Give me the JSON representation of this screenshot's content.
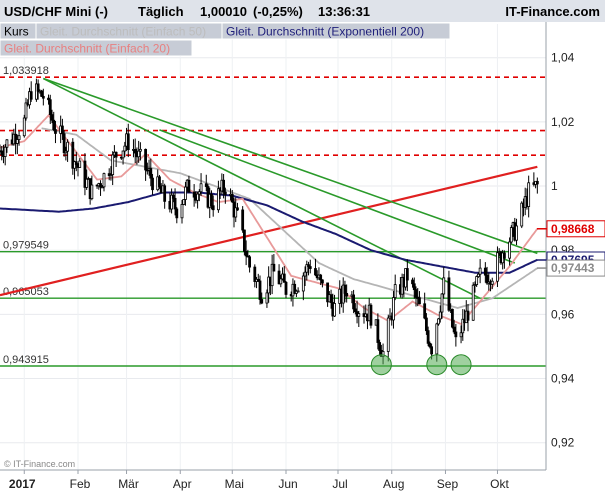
{
  "header": {
    "symbol": "USD/CHF Mini (-)",
    "interval": "Täglich",
    "last": "1,00010",
    "change": "(-0,25%)",
    "time": "13:36:31",
    "brand": "IT-Finance.com"
  },
  "legend": [
    {
      "label": "Kurs",
      "color": "#000000",
      "bg": "#c7ccd6"
    },
    {
      "label": "Gleit. Durchschnitt (Einfach 50)",
      "color": "#bdbdbd",
      "bg": "#c7ccd6"
    },
    {
      "label": "Gleit. Durchschnitt (Exponentiell 200)",
      "color": "#1f1f7a",
      "bg": "#c7ccd6"
    },
    {
      "label": "Gleit. Durchschnitt (Einfach 20)",
      "color": "#e88080",
      "bg": "#c7ccd6"
    }
  ],
  "watermark": "© IT-Finance.com",
  "colors": {
    "candle": "#000000",
    "ma20": "#e89a9a",
    "ma50": "#b5b5b5",
    "ema200": "#1a1a70",
    "support": "#2a9a2a",
    "resistance": "#e00000",
    "trend": "#e02020",
    "down_trend": "#2a9a2a"
  },
  "chart_data": {
    "type": "line",
    "title": "USD/CHF Mini (-)",
    "x_tick_labels": [
      "2017",
      "Feb",
      "Mär",
      "Apr",
      "Mai",
      "Jun",
      "Jul",
      "Aug",
      "Sep",
      "Okt"
    ],
    "x_tick_days": [
      0,
      31,
      59,
      90,
      120,
      151,
      181,
      212,
      243,
      273
    ],
    "x_range_days": [
      -14,
      301
    ],
    "y_ticks": [
      0.92,
      0.94,
      0.96,
      0.98,
      1.0,
      1.02,
      1.04
    ],
    "y_tick_labels": [
      "0,92",
      "0,94",
      "0,96",
      "0,98",
      "1",
      "1,02",
      "1,04"
    ],
    "ylim": [
      0.9115,
      1.0505
    ],
    "horizontal_levels": [
      {
        "value": 1.033918,
        "label": "1,033918",
        "style": "resistance"
      },
      {
        "value": 1.0173,
        "label": "",
        "style": "resistance"
      },
      {
        "value": 1.0096,
        "label": "",
        "style": "resistance"
      },
      {
        "value": 0.979549,
        "label": "0,979549",
        "style": "support"
      },
      {
        "value": 0.965053,
        "label": "0,965053",
        "style": "support"
      },
      {
        "value": 0.943915,
        "label": "0,943915",
        "style": "support"
      }
    ],
    "trend_lines": [
      {
        "name": "rising",
        "points": [
          [
            -14,
            0.966
          ],
          [
            296,
            1.006
          ]
        ],
        "style": "trend"
      },
      {
        "name": "down1",
        "points": [
          [
            11,
            1.0335
          ],
          [
            296,
            0.979
          ]
        ],
        "style": "down_trend"
      },
      {
        "name": "down2",
        "points": [
          [
            11,
            1.0335
          ],
          [
            263,
            0.965
          ]
        ],
        "style": "down_trend"
      },
      {
        "name": "down3",
        "points": [
          [
            78,
            1.0175
          ],
          [
            283,
            0.976
          ]
        ],
        "style": "down_trend"
      }
    ],
    "double_bottoms": [
      [
        206,
        0.944
      ],
      [
        238,
        0.944
      ],
      [
        252,
        0.944
      ]
    ],
    "price_labels": [
      {
        "value": 0.98668,
        "label": "0,98668",
        "color": "#e00000"
      },
      {
        "value": 0.97695,
        "label": "0,97695",
        "color": "#1a1a70"
      },
      {
        "value": 0.97443,
        "label": "0,97443",
        "color": "#8a8a8a"
      }
    ],
    "series": [
      {
        "name": "Kurs",
        "x": [
          -14,
          -7,
          0,
          4,
          11,
          18,
          25,
          32,
          39,
          46,
          53,
          60,
          67,
          74,
          81,
          88,
          95,
          102,
          109,
          116,
          123,
          130,
          137,
          144,
          151,
          158,
          165,
          172,
          179,
          186,
          193,
          200,
          207,
          214,
          221,
          228,
          235,
          242,
          249,
          256,
          263,
          270,
          277,
          284,
          291,
          296
        ],
        "y": [
          1.011,
          1.015,
          1.02,
          1.03,
          1.028,
          1.018,
          1.012,
          1.005,
          0.998,
          1.003,
          1.01,
          1.014,
          1.008,
          1.002,
          0.996,
          0.993,
          1.0,
          0.998,
          0.995,
          1.0,
          0.99,
          0.975,
          0.967,
          0.973,
          0.968,
          0.97,
          0.976,
          0.968,
          0.962,
          0.968,
          0.962,
          0.96,
          0.948,
          0.966,
          0.972,
          0.962,
          0.95,
          0.969,
          0.951,
          0.961,
          0.972,
          0.973,
          0.981,
          0.987,
          0.998,
          1.0001
        ]
      },
      {
        "name": "Gleit. Durchschnitt (Einfach 20)",
        "x": [
          -14,
          0,
          14,
          28,
          42,
          56,
          70,
          84,
          98,
          112,
          126,
          140,
          154,
          168,
          182,
          196,
          210,
          224,
          238,
          252,
          266,
          280,
          296
        ],
        "y": [
          1.012,
          1.014,
          1.022,
          1.012,
          1.002,
          1.003,
          1.01,
          1.002,
          0.998,
          0.995,
          0.996,
          0.984,
          0.972,
          0.97,
          0.968,
          0.962,
          0.958,
          0.964,
          0.96,
          0.957,
          0.966,
          0.975,
          0.9867
        ]
      },
      {
        "name": "Gleit. Durchschnitt (Einfach 50)",
        "x": [
          10,
          30,
          50,
          70,
          90,
          110,
          130,
          150,
          170,
          190,
          210,
          230,
          250,
          270,
          296
        ],
        "y": [
          1.018,
          1.016,
          1.008,
          1.006,
          1.004,
          1.0,
          0.996,
          0.986,
          0.976,
          0.971,
          0.968,
          0.965,
          0.962,
          0.965,
          0.9744
        ]
      },
      {
        "name": "Gleit. Durchschnitt (Exponentiell 200)",
        "x": [
          -14,
          20,
          40,
          60,
          80,
          100,
          120,
          140,
          160,
          180,
          200,
          220,
          240,
          260,
          280,
          296
        ],
        "y": [
          0.993,
          0.992,
          0.993,
          0.995,
          0.998,
          0.998,
          0.997,
          0.994,
          0.989,
          0.985,
          0.98,
          0.977,
          0.975,
          0.973,
          0.973,
          0.977
        ]
      }
    ]
  }
}
